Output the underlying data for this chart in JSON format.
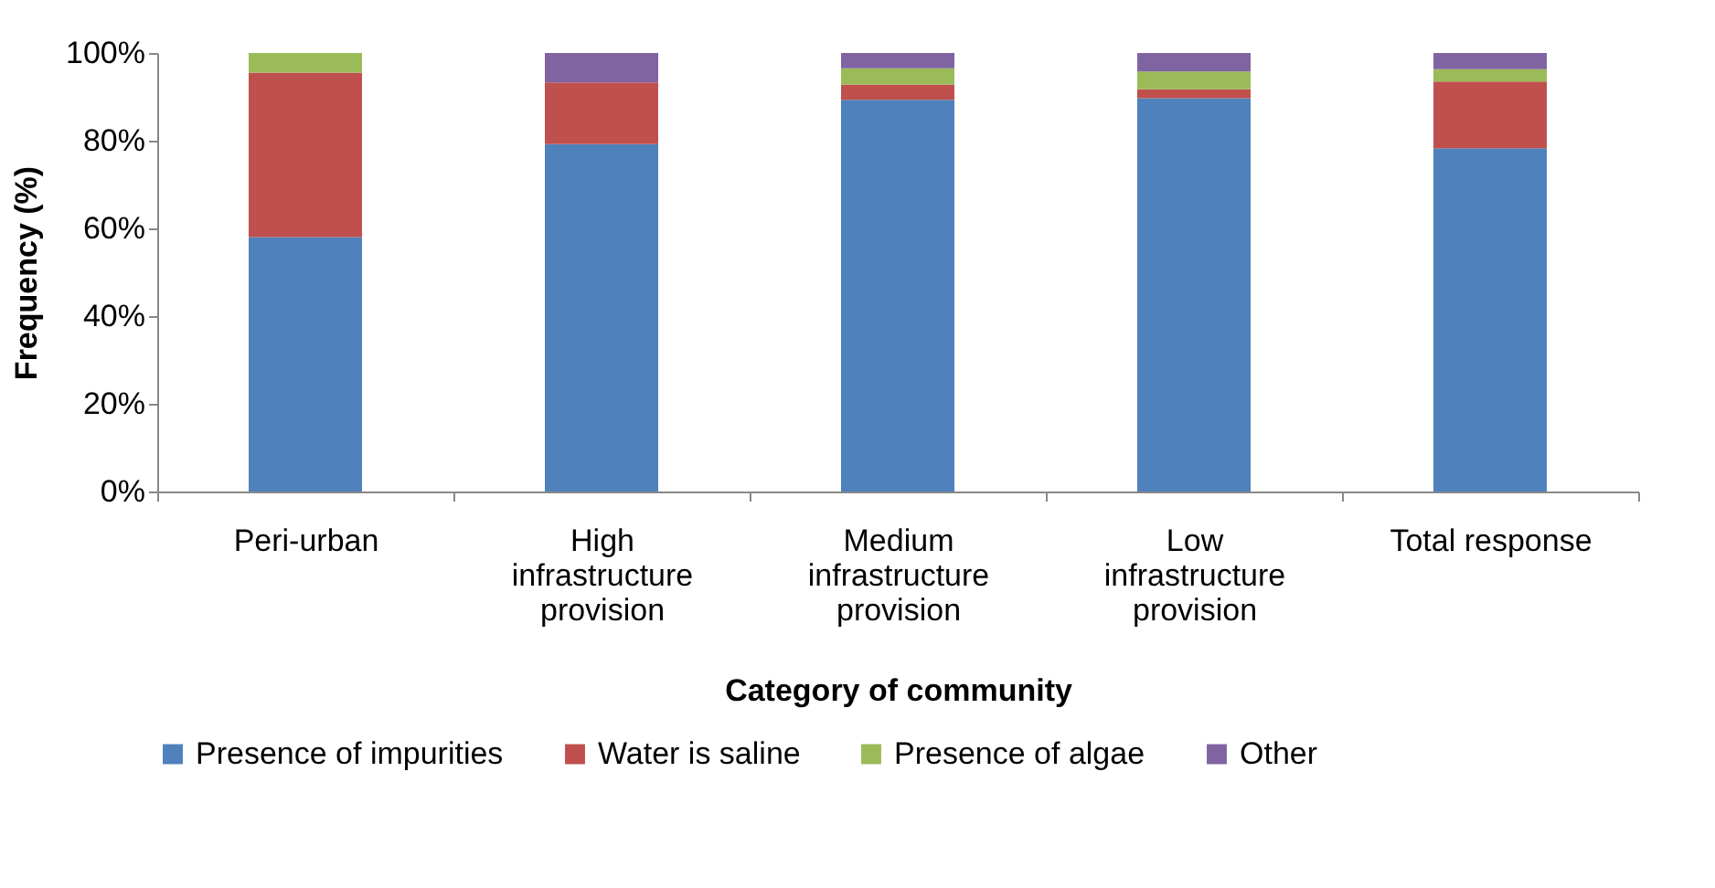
{
  "chart_data": {
    "type": "bar",
    "stacked": true,
    "xlabel": "Category of community",
    "ylabel": "Frequency (%)",
    "categories": [
      "Peri-urban",
      "High infrastructure provision",
      "Medium infrastructure provision",
      "Low infrastructure provision",
      "Total response"
    ],
    "series": [
      {
        "name": "Presence of impurities",
        "color": "#4f81bd",
        "values": [
          58,
          79.2,
          89.3,
          89.7,
          78.3
        ]
      },
      {
        "name": "Water is saline",
        "color": "#c0504d",
        "values": [
          37.5,
          14.1,
          3.5,
          2,
          15.2
        ]
      },
      {
        "name": "Presence of algae",
        "color": "#9bbb59",
        "values": [
          4.5,
          0,
          3.7,
          4.1,
          2.8
        ]
      },
      {
        "name": "Other",
        "color": "#8064a2",
        "values": [
          0,
          6.7,
          3.5,
          4.2,
          3.7
        ]
      }
    ],
    "ylim": [
      0,
      100
    ],
    "yticks": [
      {
        "value": 0,
        "label": "0%"
      },
      {
        "value": 20,
        "label": "20%"
      },
      {
        "value": 40,
        "label": "40%"
      },
      {
        "value": 60,
        "label": "60%"
      },
      {
        "value": 80,
        "label": "80%"
      },
      {
        "value": 100,
        "label": "100%"
      }
    ],
    "grid": false,
    "legend": "bottom"
  }
}
